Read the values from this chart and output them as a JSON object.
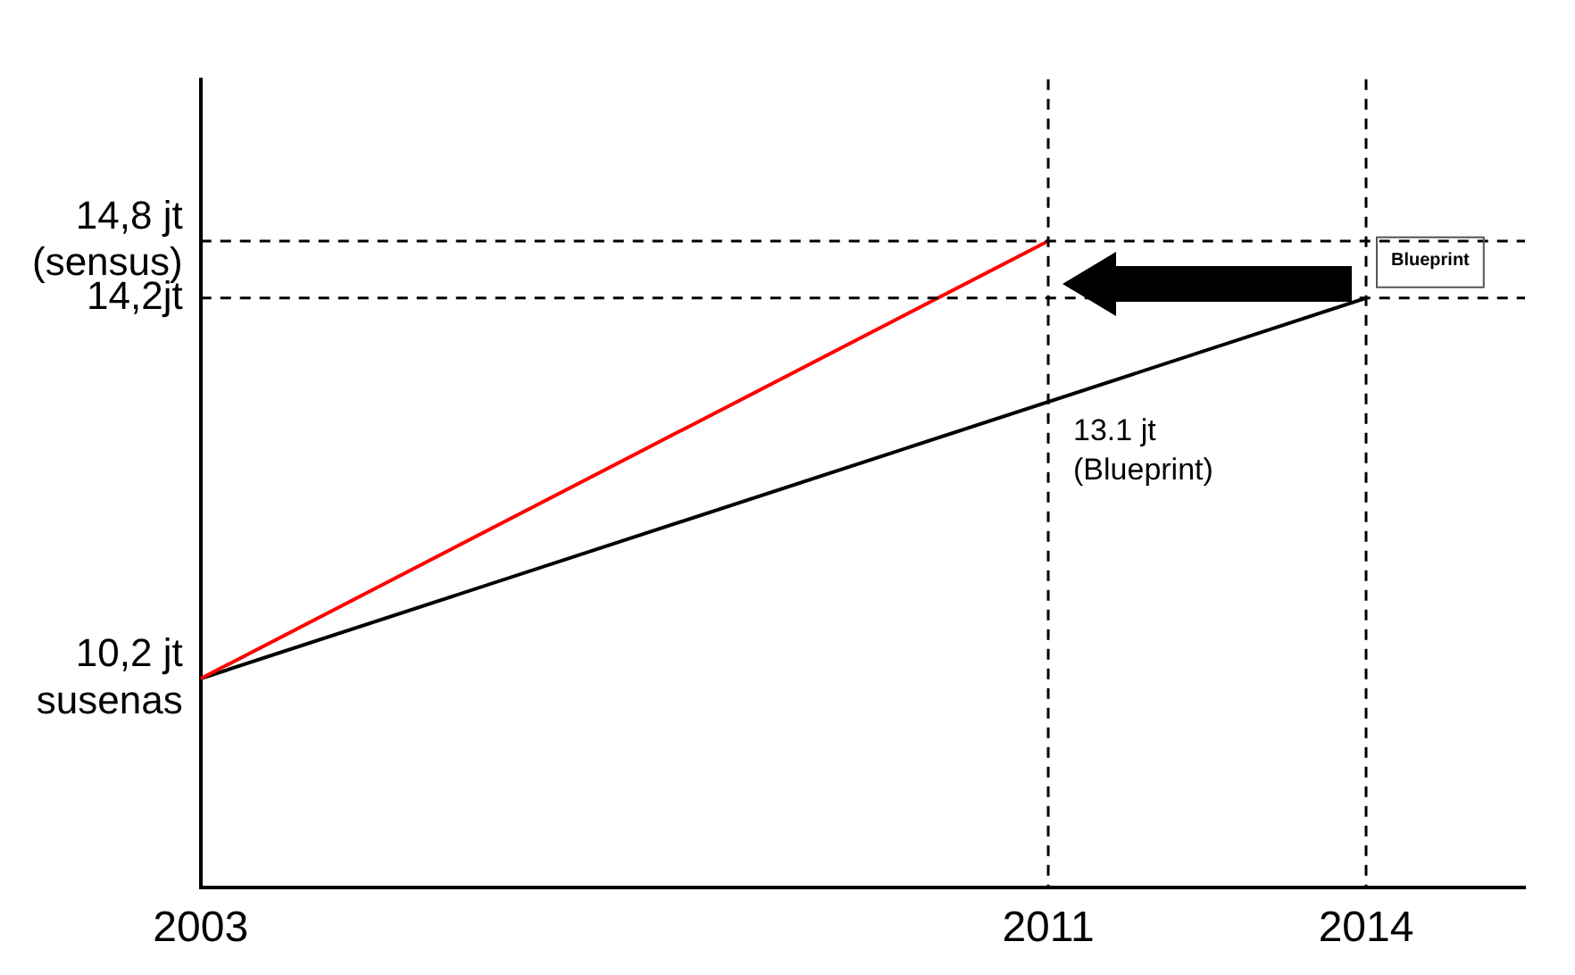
{
  "chart_data": {
    "type": "line",
    "xlim": [
      2003,
      2015.5
    ],
    "ylim": [
      8,
      16.5
    ],
    "xticks": [
      2003,
      2011,
      2014
    ],
    "yticks": [
      {
        "value": 10.2,
        "label": "10,2 jt\nsusenas"
      },
      {
        "value": 14.2,
        "label": "14,2jt"
      },
      {
        "value": 14.8,
        "label": "14,8 jt\n(sensus)"
      }
    ],
    "series": [
      {
        "color": "#ff0000",
        "x": [
          2003,
          2011
        ],
        "values": [
          10.2,
          14.8
        ]
      },
      {
        "color": "#000000",
        "x": [
          2003,
          2014
        ],
        "values": [
          10.2,
          14.2
        ]
      }
    ],
    "ref_lines": [
      {
        "axis": "x",
        "value": 2011,
        "line_style": "dashed",
        "color": "#000000"
      },
      {
        "axis": "x",
        "value": 2014,
        "line_style": "dashed",
        "color": "#000000"
      },
      {
        "axis": "y",
        "value": 14.8,
        "line_style": "dashed",
        "color": "#000000"
      },
      {
        "axis": "y",
        "value": 14.2,
        "line_style": "dashed",
        "color": "#000000"
      }
    ],
    "annotations": [
      {
        "text": "13.1 jt\n(Blueprint)",
        "x": 2011,
        "y": 13.1
      },
      {
        "text": "Blueprint",
        "x": 2014,
        "y": 14.2
      }
    ],
    "grid": false,
    "legend": false,
    "marker": "none",
    "line_style": "solid"
  }
}
